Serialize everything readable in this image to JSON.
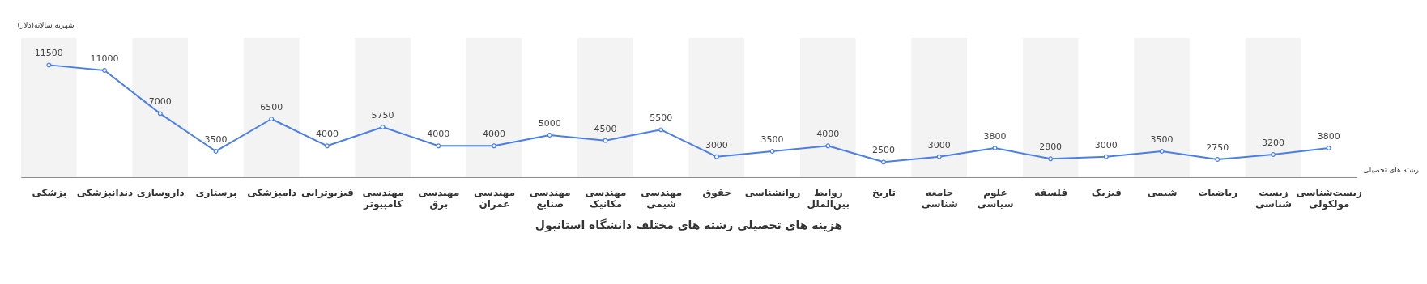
{
  "chart_data": {
    "type": "line",
    "title": "هزینه های تحصیلی رشته های مختلف دانشگاه استانبول",
    "ylabel": "(دلار)شهریه سالانه",
    "xlabel": "رشته های تحصیلی",
    "categories": [
      "پزشکی",
      "دندانپزشکی",
      "داروسازی",
      "پرستاری",
      "دامپزشکی",
      "فیزیوتراپی",
      "مهندسی کامپیوتر",
      "مهندسی برق",
      "مهندسی عمران",
      "مهندسی صنایع",
      "مهندسی مکانیک",
      "مهندسی شیمی",
      "حقوق",
      "روانشناسی",
      "روابط بین‌الملل",
      "تاریخ",
      "جامعه شناسی",
      "علوم سیاسی",
      "فلسفه",
      "فیزیک",
      "شیمی",
      "ریاضیات",
      "زیست شناسی",
      "زیست‌شناسی مولکولی"
    ],
    "series": [
      {
        "color": "#4a7fe8",
        "values": [
          11500,
          11000,
          7000,
          3500,
          6500,
          4000,
          5750,
          4000,
          4000,
          5000,
          4500,
          5500,
          3000,
          3500,
          4000,
          2500,
          3000,
          3800,
          2800,
          3000,
          3500,
          2750,
          3200,
          3800
        ]
      }
    ],
    "bands": [
      {
        "axis": "x",
        "from": "پزشکی",
        "to": "پزشکی",
        "color": "#f3f3f3"
      },
      {
        "axis": "x",
        "from": "داروسازی",
        "to": "داروسازی",
        "color": "#f3f3f3"
      },
      {
        "axis": "x",
        "from": "دامپزشکی",
        "to": "دامپزشکی",
        "color": "#f3f3f3"
      },
      {
        "axis": "x",
        "from": "مهندسی کامپیوتر",
        "to": "مهندسی کامپیوتر",
        "color": "#f3f3f3"
      },
      {
        "axis": "x",
        "from": "مهندسی عمران",
        "to": "مهندسی عمران",
        "color": "#f3f3f3"
      },
      {
        "axis": "x",
        "from": "مهندسی مکانیک",
        "to": "مهندسی مکانیک",
        "color": "#f3f3f3"
      },
      {
        "axis": "x",
        "from": "حقوق",
        "to": "حقوق",
        "color": "#f3f3f3"
      },
      {
        "axis": "x",
        "from": "روابط بین‌الملل",
        "to": "روابط بین‌الملل",
        "color": "#f3f3f3"
      },
      {
        "axis": "x",
        "from": "جامعه شناسی",
        "to": "جامعه شناسی",
        "color": "#f3f3f3"
      },
      {
        "axis": "x",
        "from": "فلسفه",
        "to": "فلسفه",
        "color": "#f3f3f3"
      },
      {
        "axis": "x",
        "from": "شیمی",
        "to": "شیمی",
        "color": "#f3f3f3"
      },
      {
        "axis": "x",
        "from": "زیست شناسی",
        "to": "زیست شناسی",
        "color": "#f3f3f3"
      }
    ],
    "ylim": [
      1100,
      14000
    ],
    "data_labels": true,
    "marker": "circle",
    "tick_labels": "x"
  }
}
